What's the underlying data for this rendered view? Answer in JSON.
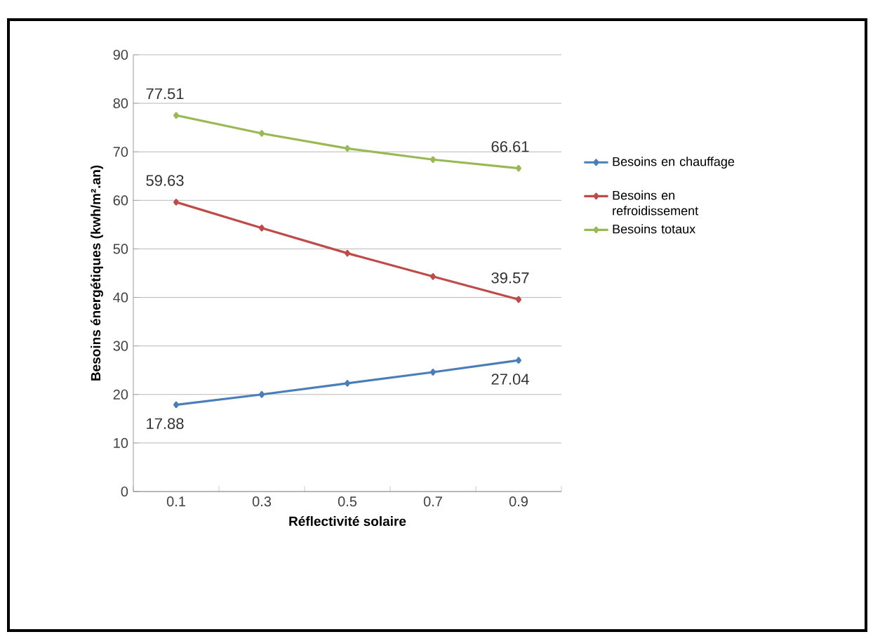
{
  "chart_data": {
    "type": "line",
    "xlabel": "Réflectivité solaire",
    "ylabel": "Besoins énergétiques (kwh/m².an)",
    "categories": [
      "0.1",
      "0.3",
      "0.5",
      "0.7",
      "0.9"
    ],
    "series": [
      {
        "name": "Besoins en chauffage",
        "color": "#4a7ebb",
        "values": [
          17.88,
          20.0,
          22.3,
          24.6,
          27.04
        ],
        "value_labels": [
          "17.88",
          null,
          null,
          null,
          "27.04"
        ]
      },
      {
        "name": "Besoins en refroidissement",
        "color": "#be4b48",
        "values": [
          59.63,
          54.3,
          49.1,
          44.3,
          39.57
        ],
        "value_labels": [
          "59.63",
          null,
          null,
          null,
          "39.57"
        ]
      },
      {
        "name": "Besoins totaux",
        "color": "#98b954",
        "values": [
          77.51,
          73.8,
          70.7,
          68.4,
          66.61
        ],
        "value_labels": [
          "77.51",
          null,
          null,
          null,
          "66.61"
        ]
      }
    ],
    "ylim": [
      0,
      90
    ],
    "yticks": [
      0,
      10,
      20,
      30,
      40,
      50,
      60,
      70,
      80,
      90
    ],
    "grid": "y",
    "legend": "right",
    "marker": "diamond",
    "line_style": "solid"
  }
}
